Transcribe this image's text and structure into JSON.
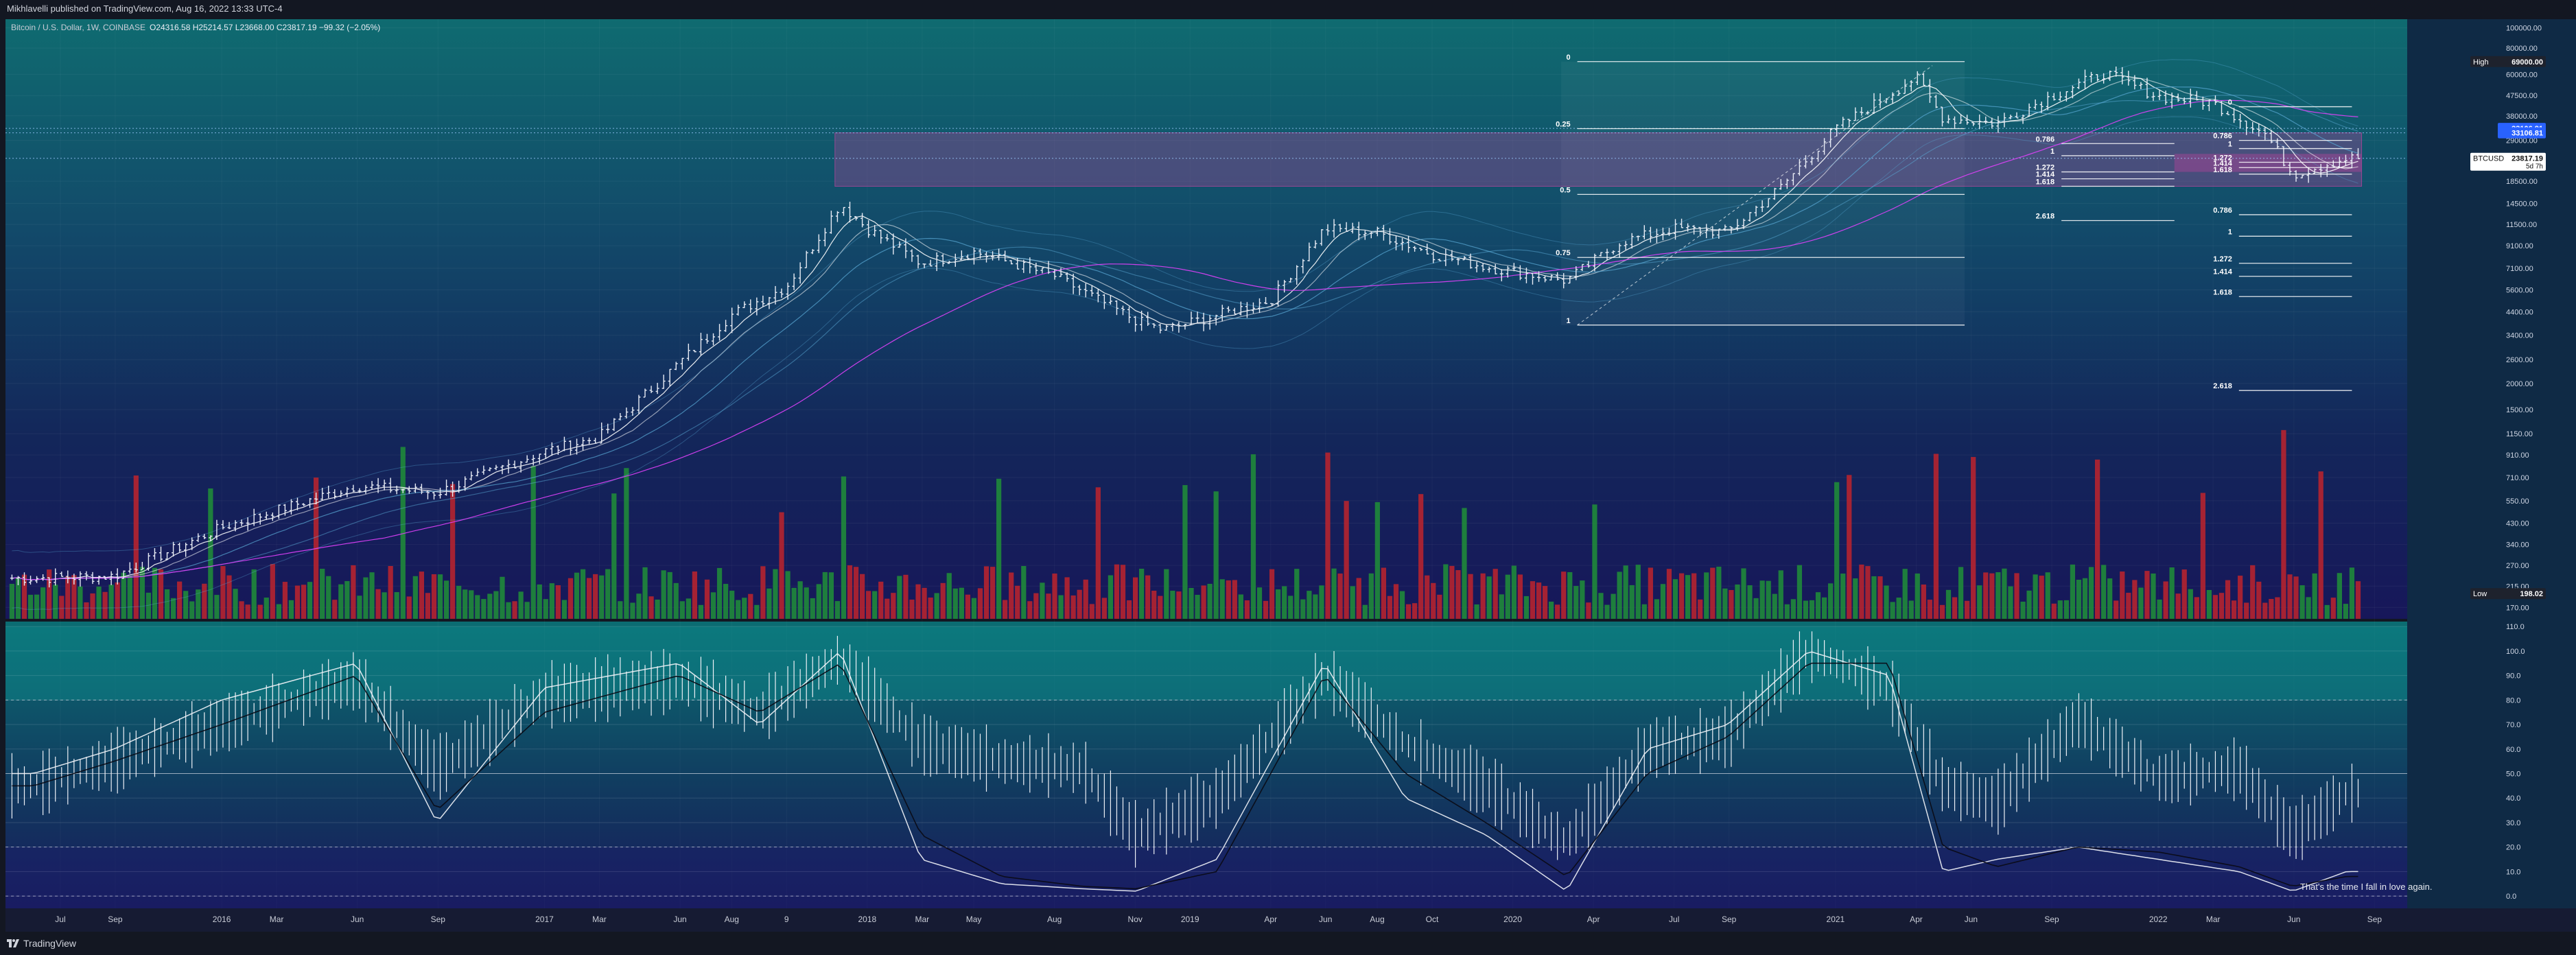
{
  "header": {
    "published": "Mikhlavelli published on TradingView.com, Aug 16, 2022 13:33 UTC-4",
    "symbol": "Bitcoin / U.S. Dollar, 1W, COINBASE",
    "ohlc": "O24316.58 H25214.57 L23668.00 C23817.19 −99.32 (−2.05%)"
  },
  "footer": {
    "brand": "TradingView"
  },
  "annotation": "That's the time I fall in love again.",
  "colors": {
    "up": "#1f8a3a",
    "down": "#b5232f",
    "wick": "#e8ecf5",
    "ma": "#ffffff",
    "ma_outer": "#5aa9d6",
    "magenta": "#e040fb",
    "zone": "#b0459a",
    "osc_band": "#0e8a8c",
    "price_label": "#131722"
  },
  "chart_data": [
    {
      "type": "line",
      "title": "Bitcoin / U.S. Dollar, 1W, COINBASE",
      "scale": "log",
      "x_ticks": [
        "Jul",
        "Sep",
        "2016",
        "Mar",
        "Jun",
        "Sep",
        "2017",
        "Mar",
        "Jun",
        "Aug",
        "9",
        "2018",
        "Mar",
        "May",
        "Aug",
        "Nov",
        "2019",
        "Apr",
        "Jun",
        "Aug",
        "Oct",
        "2020",
        "Apr",
        "Jul",
        "Sep",
        "2021",
        "Apr",
        "Jun",
        "Sep",
        "2022",
        "Mar",
        "Jun",
        "Sep"
      ],
      "y_ticks": [
        "100000.00",
        "80000.00",
        "60000.00",
        "47500.00",
        "38000.00",
        "29000.00",
        "18500.00",
        "14500.00",
        "11500.00",
        "9100.00",
        "7100.00",
        "5600.00",
        "4400.00",
        "3400.00",
        "2600.00",
        "2000.00",
        "1500.00",
        "1150.00",
        "910.00",
        "710.00",
        "550.00",
        "430.00",
        "340.00",
        "270.00",
        "215.00",
        "170.00"
      ],
      "y_tick_values": [
        100000,
        80000,
        60000,
        47500,
        38000,
        29000,
        18500,
        14500,
        11500,
        9100,
        7100,
        5600,
        4400,
        3400,
        2600,
        2000,
        1500,
        1150,
        910,
        710,
        550,
        430,
        340,
        270,
        215,
        170
      ],
      "ylim": [
        150,
        110000
      ],
      "price_labels": [
        {
          "tag": "High",
          "value": "69000.00",
          "y": 69000
        },
        {
          "tag": "",
          "value": "33106.81",
          "y": 33106.81
        },
        {
          "tag": "",
          "value": "33106.81",
          "y": 31500
        },
        {
          "tag": "BTCUSD",
          "value": "23817.19",
          "sub": "5d 7h",
          "y": 23817.19
        },
        {
          "tag": "Low",
          "value": "198.02",
          "y": 198.02
        }
      ],
      "close_series_approx": {
        "x": [
          "2015-06",
          "2015-09",
          "2016-01",
          "2016-06",
          "2016-09",
          "2017-01",
          "2017-03",
          "2017-06",
          "2017-08",
          "2017-10",
          "2017-12",
          "2018-01",
          "2018-03",
          "2018-05",
          "2018-08",
          "2018-11",
          "2018-12",
          "2019-04",
          "2019-06",
          "2019-08",
          "2019-10",
          "2019-12",
          "2020-03",
          "2020-05",
          "2020-07",
          "2020-09",
          "2020-11",
          "2021-01",
          "2021-04",
          "2021-05",
          "2021-07",
          "2021-09",
          "2021-11",
          "2022-01",
          "2022-03",
          "2022-05",
          "2022-06",
          "2022-08"
        ],
        "y": [
          235,
          240,
          410,
          650,
          600,
          950,
          1100,
          2500,
          4300,
          5800,
          14500,
          11000,
          7500,
          8500,
          6500,
          4000,
          3600,
          5000,
          11000,
          10500,
          8300,
          7200,
          6200,
          9500,
          11000,
          10600,
          17500,
          33000,
          58000,
          37000,
          35000,
          47000,
          61000,
          47000,
          44000,
          31000,
          20000,
          23817
        ]
      },
      "fib_levels_left": [
        "0",
        "0.25",
        "0.5",
        "0.75",
        "1"
      ],
      "fib_levels_right": [
        "0",
        "0.786",
        "1",
        "1.272",
        "1.414",
        "1.618",
        "0.786",
        "1",
        "1.272",
        "1.414",
        "1.618",
        "2.618"
      ],
      "fib_levels_mid": [
        "0.786",
        "1",
        "1.272",
        "1.414",
        "1.618",
        "2.618"
      ]
    },
    {
      "type": "line",
      "title": "oscillator",
      "y_ticks": [
        "110.0",
        "100.0",
        "90.0",
        "80.0",
        "70.0",
        "60.0",
        "50.0",
        "40.0",
        "30.0",
        "20.0",
        "10.0",
        "0.0"
      ],
      "y_tick_values": [
        110,
        100,
        90,
        80,
        70,
        60,
        50,
        40,
        30,
        20,
        10,
        0
      ],
      "ylim": [
        -5,
        112
      ],
      "levels": [
        80,
        50,
        20,
        0
      ],
      "x": [
        "2015-06",
        "2015-09",
        "2016-01",
        "2016-06",
        "2016-09",
        "2017-01",
        "2017-06",
        "2017-09",
        "2017-12",
        "2018-03",
        "2018-06",
        "2018-09",
        "2018-11",
        "2019-02",
        "2019-06",
        "2019-09",
        "2019-12",
        "2020-03",
        "2020-06",
        "2020-09",
        "2020-12",
        "2021-03",
        "2021-05",
        "2021-07",
        "2021-10",
        "2022-01",
        "2022-04",
        "2022-06",
        "2022-08"
      ],
      "rsi": [
        45,
        55,
        70,
        88,
        52,
        82,
        88,
        75,
        97,
        62,
        55,
        52,
        25,
        40,
        90,
        62,
        45,
        22,
        60,
        65,
        100,
        85,
        45,
        38,
        72,
        48,
        52,
        25,
        42
      ],
      "stoch_k": [
        50,
        60,
        80,
        95,
        30,
        85,
        95,
        70,
        100,
        15,
        5,
        3,
        2,
        15,
        95,
        40,
        25,
        2,
        60,
        70,
        100,
        90,
        10,
        15,
        20,
        15,
        10,
        2,
        10
      ],
      "stoch_d": [
        45,
        55,
        70,
        90,
        35,
        75,
        90,
        75,
        95,
        25,
        8,
        4,
        3,
        10,
        90,
        50,
        30,
        8,
        50,
        65,
        95,
        95,
        20,
        12,
        20,
        18,
        12,
        4,
        8
      ]
    }
  ]
}
